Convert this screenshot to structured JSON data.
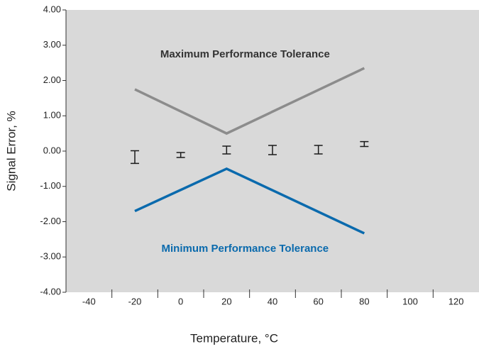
{
  "chart_data": {
    "type": "line",
    "xlabel": "Temperature, °C",
    "ylabel": "Signal Error, %",
    "xlim": [
      -50,
      130
    ],
    "xticks": [
      -40,
      -20,
      0,
      20,
      40,
      60,
      80,
      100,
      120
    ],
    "ylim": [
      -4,
      4
    ],
    "yticks": [
      {
        "value": -4,
        "label": "-4.00"
      },
      {
        "value": -3,
        "label": "-3.00"
      },
      {
        "value": -2,
        "label": "-2.00"
      },
      {
        "value": -1,
        "label": "-1.00"
      },
      {
        "value": 0,
        "label": "0.00"
      },
      {
        "value": 1,
        "label": "1.00"
      },
      {
        "value": 2,
        "label": "2.00"
      },
      {
        "value": 3,
        "label": "3.00"
      },
      {
        "value": 4,
        "label": "4.00"
      }
    ],
    "background": "#d9d9d9",
    "series": [
      {
        "kind": "line",
        "color": "#8c8c8c",
        "x": [
          -20,
          20,
          80
        ],
        "values": [
          1.75,
          0.5,
          2.35
        ]
      },
      {
        "kind": "line",
        "color": "#0a6aad",
        "x": [
          -20,
          20,
          80
        ],
        "values": [
          -1.7,
          -0.5,
          -2.33
        ]
      },
      {
        "kind": "errorbar",
        "color": "#1a1a1a",
        "x": [
          -20,
          0,
          20,
          40,
          60,
          80
        ],
        "values": [
          -0.17,
          -0.11,
          0.03,
          0.03,
          0.04,
          0.2
        ],
        "errors": [
          0.18,
          0.07,
          0.11,
          0.13,
          0.12,
          0.07
        ]
      }
    ],
    "annotations": [
      {
        "text": "Maximum Performance Tolerance",
        "x": 20,
        "y": 2.75,
        "color": "#333333"
      },
      {
        "text": "Minimum Performance Tolerance",
        "x": 20,
        "y": -2.75,
        "color": "#0a6aad"
      }
    ]
  }
}
